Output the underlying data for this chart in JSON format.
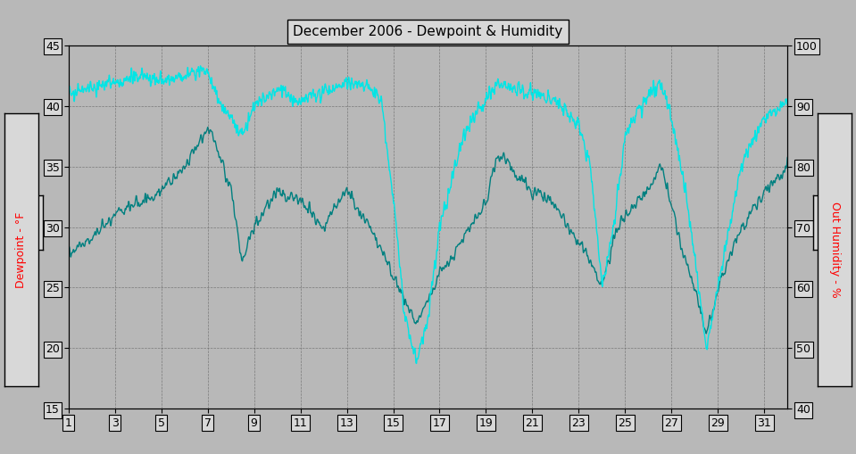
{
  "title": "December 2006 - Dewpoint & Humidity",
  "ylabel_left": "Dewpoint - °F",
  "ylabel_right": "Out Humidity - %",
  "ylim_left": [
    15.0,
    45.0
  ],
  "ylim_right": [
    40,
    100
  ],
  "yticks_left": [
    15.0,
    20.0,
    25.0,
    30.0,
    35.0,
    40.0,
    45.0
  ],
  "yticks_right": [
    40,
    50,
    60,
    70,
    80,
    90,
    100
  ],
  "xticks": [
    1,
    3,
    5,
    7,
    9,
    11,
    13,
    15,
    17,
    19,
    21,
    23,
    25,
    27,
    29,
    31
  ],
  "xlim": [
    1,
    32
  ],
  "bg_color": "#b8b8b8",
  "plot_bg_color": "#b8b8b8",
  "grid_color": "#606060",
  "dewpoint_color": "#008080",
  "humidity_color": "#00e5e5",
  "title_box_color": "#d8d8d8",
  "dewpoint_linewidth": 1.0,
  "humidity_linewidth": 1.0
}
